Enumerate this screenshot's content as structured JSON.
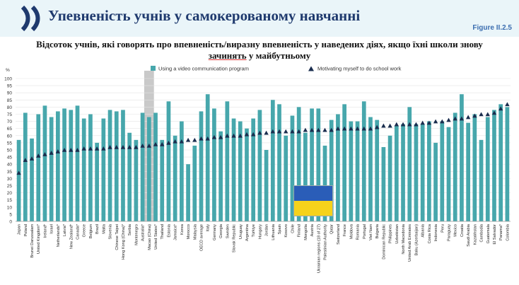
{
  "header": {
    "title": "Упевненість учнів у самокерованому навчанні",
    "figure_label": "Figure II.2.5"
  },
  "subtitle": {
    "line1": "Відсоток учнів, які говорять про впевненість/виразну впевненість у наведених діях, якщо їхні школи знову",
    "line2_underlined": "зачинять",
    "line2_rest": "у майбутньому"
  },
  "colors": {
    "bar": "#47a7ac",
    "marker": "#1a2d4e",
    "highlight": "#c9c9c9",
    "header_bg": "#eaf5f9",
    "title": "#1f3a6e"
  },
  "chart_data": {
    "type": "bar",
    "ylabel": "%",
    "ylim": [
      0,
      100
    ],
    "yticks": [
      0,
      5,
      10,
      15,
      20,
      25,
      30,
      35,
      40,
      45,
      50,
      55,
      60,
      65,
      70,
      75,
      80,
      85,
      90,
      95,
      100
    ],
    "grid": true,
    "legend": "top",
    "highlighted_category": "Macao (China)",
    "categories": [
      "Japan",
      "Poland",
      "Brunei Darussalam",
      "United Kingdom*",
      "Ireland*",
      "Israel",
      "Netherlands*",
      "Latvia*",
      "New Zealand*",
      "Canada*",
      "Greece",
      "Belgium",
      "Brazil",
      "Malta",
      "Slovenia",
      "Chinese Taipei",
      "Hong Kong (China)*",
      "Serbia",
      "Montenegro",
      "Australia*",
      "Macao (China)",
      "United States*",
      "Thailand",
      "Estonia",
      "Jamaica*",
      "Korea",
      "Morocco",
      "Malaysia",
      "OECD average",
      "Italy",
      "Germany",
      "Georgia",
      "Sweden",
      "Slovak Republic",
      "Uruguay",
      "Argentina",
      "Türkiye",
      "Hungary",
      "Jordan",
      "Lithuania",
      "Spain",
      "Kosovo",
      "Chile",
      "Finland",
      "Mongolia",
      "Austria",
      "Ukrainian regions (18 of 27)",
      "Palestinian Authority",
      "Qatar",
      "Switzerland",
      "France",
      "Moldova",
      "Romania",
      "Portugal",
      "Viet Nam",
      "Bulgaria",
      "Dominican Republic",
      "Philippines",
      "Uzbekistan",
      "North Macedonia",
      "United Arab Emirates",
      "Baku (Azerbaijan)",
      "Albania",
      "Costa Rica",
      "Indonesia",
      "Peru",
      "Paraguay",
      "Mexico",
      "Croatia",
      "Saudi Arabia",
      "Kazakhstan",
      "Cambodia",
      "Guatemala",
      "El Salvador",
      "Panama*",
      "Colombia"
    ],
    "series": [
      {
        "name": "Using a video communication program",
        "type": "bar",
        "values": [
          57,
          76,
          58,
          75,
          81,
          73,
          77,
          79,
          78,
          81,
          72,
          75,
          55,
          72,
          78,
          77,
          78,
          62,
          57,
          76,
          73,
          76,
          57,
          84,
          60,
          70,
          40,
          53,
          77,
          89,
          79,
          63,
          84,
          72,
          70,
          65,
          72,
          78,
          50,
          85,
          82,
          60,
          74,
          80,
          62,
          79,
          79,
          53,
          71,
          75,
          82,
          70,
          70,
          84,
          73,
          71,
          52,
          60,
          67,
          68,
          80,
          68,
          68,
          70,
          55,
          70,
          66,
          76,
          89,
          69,
          75,
          57,
          73,
          78,
          82,
          80
        ]
      },
      {
        "name": "Motivating myself to do school work",
        "type": "marker",
        "values": [
          34,
          43,
          44,
          46,
          47,
          48,
          49,
          50,
          50,
          50,
          51,
          51,
          51,
          51,
          52,
          52,
          52,
          52,
          52,
          53,
          53,
          54,
          54,
          55,
          56,
          56,
          57,
          57,
          58,
          58,
          59,
          59,
          60,
          60,
          60,
          61,
          61,
          62,
          62,
          63,
          63,
          63,
          63,
          63,
          64,
          64,
          64,
          64,
          64,
          65,
          65,
          65,
          65,
          65,
          65,
          66,
          67,
          67,
          68,
          68,
          68,
          68,
          69,
          69,
          70,
          70,
          71,
          72,
          72,
          73,
          74,
          75,
          75,
          76,
          79,
          82
        ]
      }
    ]
  }
}
